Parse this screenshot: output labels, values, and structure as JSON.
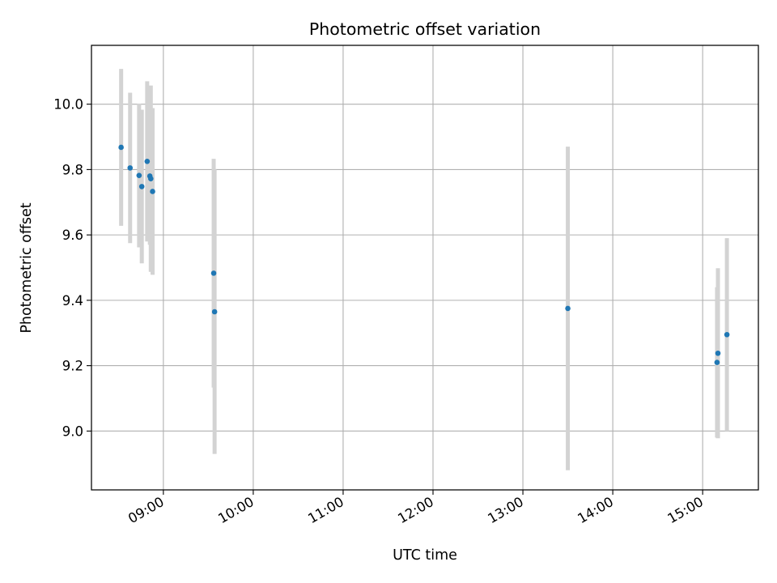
{
  "chart_data": {
    "type": "scatter",
    "title": "Photometric offset variation",
    "xlabel": "UTC time",
    "ylabel": "Photometric offset",
    "xlim_hours": [
      8.2,
      15.62
    ],
    "ylim": [
      8.82,
      10.18
    ],
    "x_ticks": [
      {
        "value": 9,
        "label": "09:00"
      },
      {
        "value": 10,
        "label": "10:00"
      },
      {
        "value": 11,
        "label": "11:00"
      },
      {
        "value": 12,
        "label": "12:00"
      },
      {
        "value": 13,
        "label": "13:00"
      },
      {
        "value": 14,
        "label": "14:00"
      },
      {
        "value": 15,
        "label": "15:00"
      }
    ],
    "y_ticks": [
      {
        "value": 9.0,
        "label": "9.0"
      },
      {
        "value": 9.2,
        "label": "9.2"
      },
      {
        "value": 9.4,
        "label": "9.4"
      },
      {
        "value": 9.6,
        "label": "9.6"
      },
      {
        "value": 9.8,
        "label": "9.8"
      },
      {
        "value": 10.0,
        "label": "10.0"
      }
    ],
    "grid": true,
    "point_color": "#1f77b4",
    "errorbar_color": "#d3d3d3",
    "points": [
      {
        "t": 8.53,
        "y": 9.868,
        "err": 0.24
      },
      {
        "t": 8.63,
        "y": 9.805,
        "err": 0.23
      },
      {
        "t": 8.73,
        "y": 9.782,
        "err": 0.22
      },
      {
        "t": 8.76,
        "y": 9.748,
        "err": 0.235
      },
      {
        "t": 8.82,
        "y": 9.825,
        "err": 0.245
      },
      {
        "t": 8.85,
        "y": 9.78,
        "err": 0.21
      },
      {
        "t": 8.86,
        "y": 9.772,
        "err": 0.285
      },
      {
        "t": 8.88,
        "y": 9.733,
        "err": 0.255
      },
      {
        "t": 9.56,
        "y": 9.483,
        "err": 0.35
      },
      {
        "t": 9.57,
        "y": 9.365,
        "err": 0.435
      },
      {
        "t": 13.5,
        "y": 9.375,
        "err": 0.495
      },
      {
        "t": 15.17,
        "y": 9.238,
        "err": 0.26
      },
      {
        "t": 15.16,
        "y": 9.21,
        "err": 0.23
      },
      {
        "t": 15.27,
        "y": 9.295,
        "err": 0.295
      }
    ]
  }
}
